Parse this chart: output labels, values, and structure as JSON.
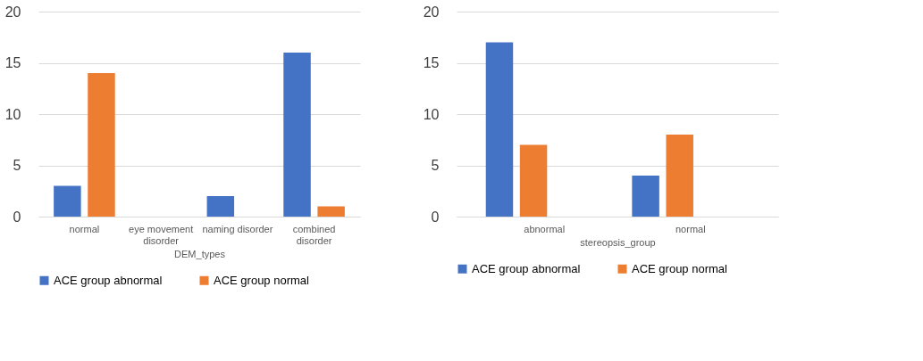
{
  "chart_data": [
    {
      "type": "bar",
      "xlabel": "DEM_types",
      "categories": [
        "normal",
        "eye movement\ndisorder",
        "naming disorder",
        "combined\ndisorder"
      ],
      "series": [
        {
          "name": "ACE group abnormal",
          "color": "#4472c4",
          "values": [
            3,
            0,
            2,
            16
          ]
        },
        {
          "name": "ACE group normal",
          "color": "#ed7d31",
          "values": [
            14,
            0,
            0,
            1
          ]
        }
      ],
      "ylim": [
        0,
        20
      ],
      "yticks": [
        0,
        5,
        10,
        15,
        20
      ],
      "grid": "y",
      "legend": "bottom"
    },
    {
      "type": "bar",
      "xlabel": "stereopsis_group",
      "categories": [
        "abnormal",
        "normal"
      ],
      "series": [
        {
          "name": "ACE group abnormal",
          "color": "#4472c4",
          "values": [
            17,
            4
          ]
        },
        {
          "name": "ACE group normal",
          "color": "#ed7d31",
          "values": [
            7,
            8
          ]
        }
      ],
      "ylim": [
        0,
        20
      ],
      "yticks": [
        0,
        5,
        10,
        15,
        20
      ],
      "grid": "y",
      "legend": "bottom"
    }
  ]
}
